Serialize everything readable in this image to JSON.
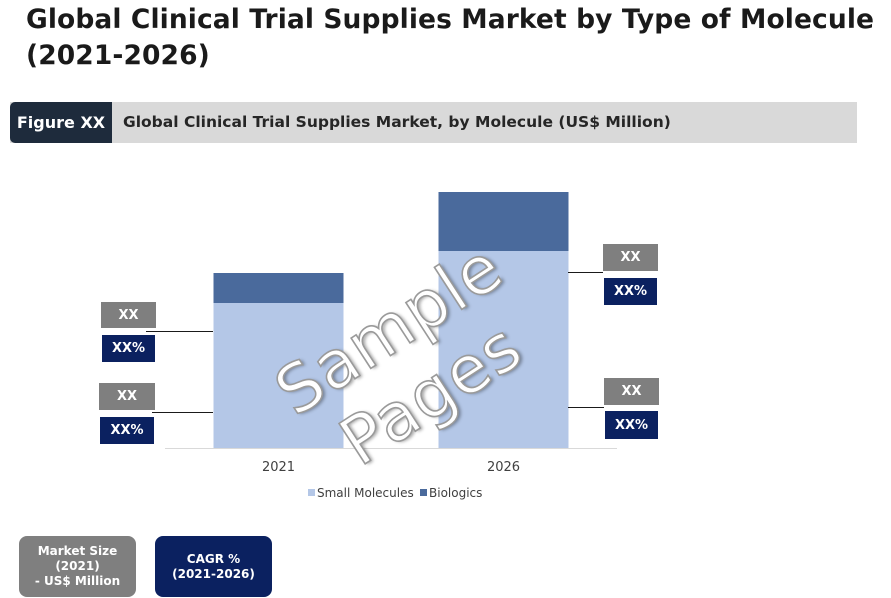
{
  "page": {
    "title": "Global Clinical Trial Supplies Market by Type of Molecule (2021-2026)",
    "figure_tag": "Figure XX",
    "figure_caption": "Global Clinical Trial Supplies Market, by Molecule (US$ Million)"
  },
  "watermark": "Sample Pages",
  "chart_data": {
    "type": "bar",
    "stacked": true,
    "categories": [
      "2021",
      "2026"
    ],
    "series": [
      {
        "name": "Small Molecules",
        "values": [
          145,
          197
        ],
        "color": "#b4c7e7"
      },
      {
        "name": "Biologics",
        "values": [
          30,
          59
        ],
        "color": "#4a6a9c"
      }
    ],
    "ylim": [
      0,
      256
    ],
    "legend": "bottom",
    "grid": false,
    "title": "",
    "xlabel": "",
    "ylabel": ""
  },
  "callouts": [
    {
      "category": "2021",
      "series": "Biologics",
      "value": "XX",
      "share": "XX%"
    },
    {
      "category": "2021",
      "series": "Small Molecules",
      "value": "XX",
      "share": "XX%"
    },
    {
      "category": "2026",
      "series": "Biologics",
      "value": "XX",
      "share": "XX%"
    },
    {
      "category": "2026",
      "series": "Small Molecules",
      "value": "XX",
      "share": "XX%"
    }
  ],
  "summary": {
    "market_size_label": "Market Size (2021)\n- US$ Million",
    "market_size_line1": "Market Size (2021)",
    "market_size_line2": "- US$ Million",
    "cagr_line1": "CAGR %",
    "cagr_line2": "(2021-2026)"
  }
}
